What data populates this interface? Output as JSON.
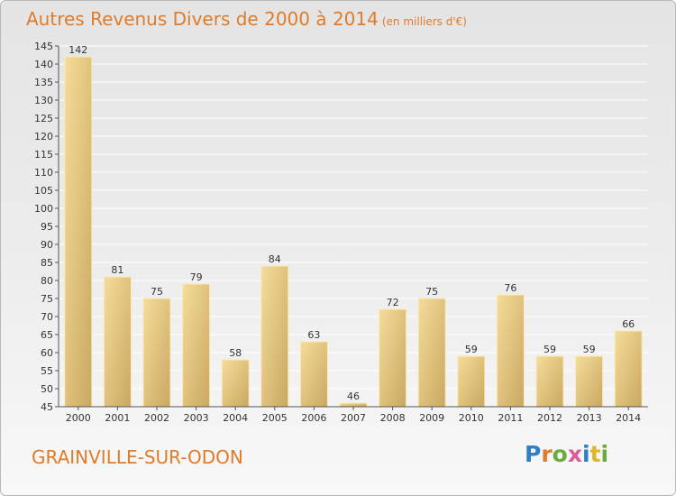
{
  "header": {
    "title": "Autres Revenus Divers de 2000 à 2014",
    "unit": "(en milliers d'€)"
  },
  "footer": {
    "commune": "GRAINVILLE-SUR-ODON",
    "logo_letters": [
      {
        "ch": "P",
        "color": "#2f7fc4"
      },
      {
        "ch": "r",
        "color": "#e07b2a"
      },
      {
        "ch": "o",
        "color": "#6aab3c"
      },
      {
        "ch": "x",
        "color": "#e05a9a"
      },
      {
        "ch": "i",
        "color": "#2f7fc4"
      },
      {
        "ch": "t",
        "color": "#e0b52a"
      },
      {
        "ch": "i",
        "color": "#6aab3c"
      }
    ]
  },
  "chart_data": {
    "type": "bar",
    "title": "Autres Revenus Divers de 2000 à 2014",
    "subtitle": "(en milliers d'€)",
    "categories": [
      "2000",
      "2001",
      "2002",
      "2003",
      "2004",
      "2005",
      "2006",
      "2007",
      "2008",
      "2009",
      "2010",
      "2011",
      "2012",
      "2013",
      "2014"
    ],
    "values": [
      142,
      81,
      75,
      79,
      58,
      84,
      63,
      46,
      72,
      75,
      59,
      76,
      59,
      59,
      66
    ],
    "ylim": [
      45,
      145
    ],
    "yticks": [
      45,
      50,
      55,
      60,
      65,
      70,
      75,
      80,
      85,
      90,
      95,
      100,
      105,
      110,
      115,
      120,
      125,
      130,
      135,
      140,
      145
    ],
    "grid": true,
    "colors": {
      "bar_light": "#f5dc9a",
      "bar_dark": "#c9a862",
      "axis": "#555555",
      "grid": "#ffffff",
      "text": "#333333"
    }
  }
}
